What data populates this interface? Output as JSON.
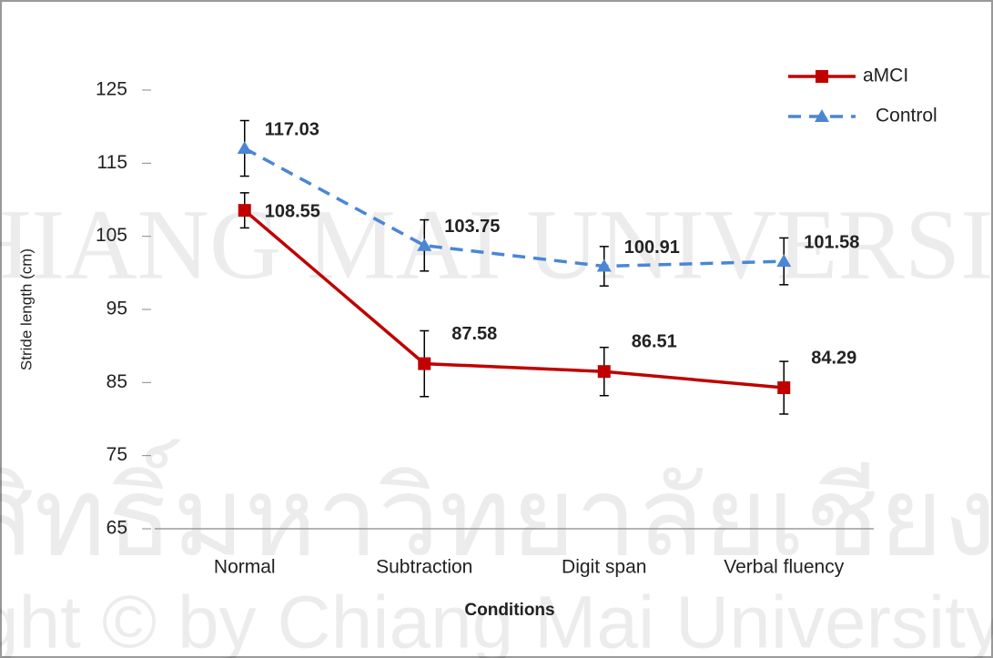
{
  "chart_data": {
    "type": "line",
    "x_label": "Conditions",
    "y_label": "Stride length (cm)",
    "categories": [
      "Normal",
      "Subtraction",
      "Digit span",
      "Verbal fluency"
    ],
    "series": [
      {
        "name": "aMCI",
        "color": "#c00000",
        "dash": false,
        "marker": "square",
        "values": [
          108.55,
          87.58,
          86.51,
          84.29
        ],
        "errors": [
          2.4,
          4.5,
          3.3,
          3.6
        ]
      },
      {
        "name": "Control",
        "color": "#4a86d4",
        "dash": true,
        "marker": "triangle",
        "values": [
          117.03,
          103.75,
          100.91,
          101.58
        ],
        "errors": [
          3.8,
          3.5,
          2.7,
          3.2
        ]
      }
    ],
    "ylim": [
      65,
      125
    ],
    "yticks": [
      65,
      75,
      85,
      95,
      105,
      115,
      125
    ],
    "grid": false,
    "legend": "top-right",
    "watermark": [
      "CHIANG MAI UNIVERSITY",
      "ลิขสิทธิ์มหาวิทยาลัยเชียงใหม่",
      "Copyright © by Chiang Mai University"
    ]
  }
}
